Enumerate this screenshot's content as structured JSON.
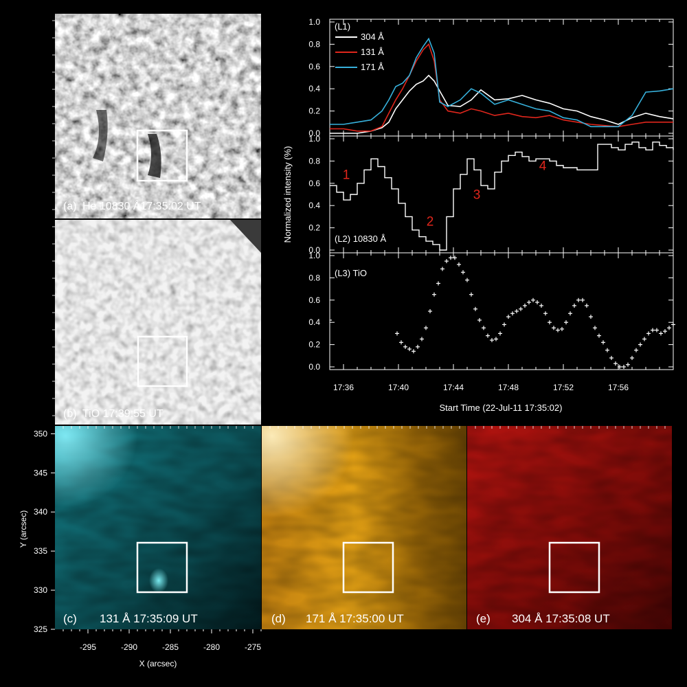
{
  "panels": {
    "a": {
      "letter": "(a)",
      "label": "He 10830 Å17:35:02 UT"
    },
    "b": {
      "letter": "(b)",
      "label": "TiO 17:39:55 UT"
    },
    "c": {
      "letter": "(c)",
      "label": "131 Å 17:35:09 UT",
      "tint": "#17a9b4"
    },
    "d": {
      "letter": "(d)",
      "label": "171 Å 17:35:00 UT",
      "tint": "#d7920a"
    },
    "e": {
      "letter": "(e)",
      "label": "304 Å 17:35:08 UT",
      "tint": "#a00d0a"
    }
  },
  "bottom_axes": {
    "xlabel": "X (arcsec)",
    "ylabel": "Y (arcsec)",
    "xticks": [
      -295,
      -290,
      -285,
      -280,
      -275
    ],
    "yticks": [
      350,
      345,
      340,
      335,
      330,
      325
    ],
    "xlim": [
      -299,
      -274
    ],
    "ylim": [
      325,
      351
    ]
  },
  "chart_data": [
    {
      "type": "line",
      "panel_label": "(L1)",
      "ylim": [
        0,
        1.0
      ],
      "yticks": [
        "0.0",
        "0.2",
        "0.4",
        "0.6",
        "0.8",
        "1.0"
      ],
      "xlim_minutes_after_start": [
        0,
        25
      ],
      "series": [
        {
          "name": "304 Å",
          "color": "#ffffff",
          "x": [
            0,
            1,
            2,
            3,
            3.8,
            4.3,
            4.8,
            5.3,
            5.8,
            6.3,
            6.8,
            7.2,
            7.6,
            8.0,
            8.6,
            9.5,
            10.3,
            11,
            12,
            13,
            14,
            15,
            16,
            17,
            18,
            19,
            20,
            21,
            22,
            23,
            24,
            25
          ],
          "y": [
            0.0,
            0.0,
            0.0,
            0.02,
            0.05,
            0.1,
            0.22,
            0.3,
            0.38,
            0.44,
            0.47,
            0.52,
            0.47,
            0.38,
            0.25,
            0.24,
            0.3,
            0.39,
            0.3,
            0.31,
            0.34,
            0.3,
            0.27,
            0.22,
            0.2,
            0.15,
            0.12,
            0.08,
            0.14,
            0.18,
            0.15,
            0.13
          ]
        },
        {
          "name": "131 Å",
          "color": "#e0261c",
          "x": [
            0,
            1,
            2,
            3,
            3.8,
            4.3,
            4.8,
            5.3,
            5.8,
            6.3,
            6.8,
            7.2,
            7.6,
            8.0,
            8.6,
            9.5,
            10.3,
            11,
            12,
            13,
            14,
            15,
            16,
            17,
            18,
            19,
            20,
            21,
            22,
            23,
            24,
            25
          ],
          "y": [
            0.04,
            0.04,
            0.02,
            0.02,
            0.06,
            0.18,
            0.3,
            0.4,
            0.52,
            0.65,
            0.75,
            0.8,
            0.65,
            0.3,
            0.2,
            0.18,
            0.22,
            0.2,
            0.16,
            0.18,
            0.15,
            0.14,
            0.16,
            0.12,
            0.1,
            0.08,
            0.07,
            0.06,
            0.08,
            0.1,
            0.1,
            0.1
          ]
        },
        {
          "name": "171 Å",
          "color": "#37b1dc",
          "x": [
            0,
            1,
            2,
            3,
            3.8,
            4.3,
            4.8,
            5.3,
            5.8,
            6.3,
            6.8,
            7.2,
            7.6,
            8.0,
            8.6,
            9.5,
            10.3,
            11,
            12,
            13,
            14,
            15,
            16,
            17,
            18,
            19,
            20,
            21,
            22,
            23,
            24,
            25
          ],
          "y": [
            0.08,
            0.08,
            0.1,
            0.12,
            0.2,
            0.3,
            0.42,
            0.45,
            0.52,
            0.68,
            0.78,
            0.85,
            0.72,
            0.28,
            0.24,
            0.3,
            0.4,
            0.36,
            0.26,
            0.3,
            0.26,
            0.22,
            0.2,
            0.14,
            0.12,
            0.06,
            0.06,
            0.06,
            0.16,
            0.37,
            0.38,
            0.4
          ]
        }
      ]
    },
    {
      "type": "line",
      "panel_label": "(L2) 10830 Å",
      "ylim": [
        0,
        1.0
      ],
      "yticks": [
        "0.0",
        "0.2",
        "0.4",
        "0.6",
        "0.8",
        "1.0"
      ],
      "x": [
        0,
        0.5,
        1,
        1.5,
        2,
        2.5,
        3,
        3.5,
        4,
        4.5,
        5,
        5.5,
        6,
        6.5,
        7,
        7.5,
        8,
        8.5,
        9,
        9.5,
        10,
        10.5,
        11,
        11.5,
        12,
        12.5,
        13,
        13.5,
        14,
        14.5,
        15,
        15.5,
        16,
        16.5,
        17,
        17.5,
        18,
        18.5,
        19,
        19.5,
        20,
        20.5,
        21,
        21.5,
        22,
        22.5,
        23,
        23.5,
        24,
        24.5,
        25
      ],
      "y": [
        0.58,
        0.52,
        0.45,
        0.5,
        0.6,
        0.72,
        0.82,
        0.75,
        0.65,
        0.55,
        0.42,
        0.3,
        0.18,
        0.12,
        0.08,
        0.05,
        0.0,
        0.3,
        0.55,
        0.68,
        0.82,
        0.72,
        0.58,
        0.55,
        0.7,
        0.8,
        0.85,
        0.88,
        0.84,
        0.8,
        0.82,
        0.82,
        0.8,
        0.76,
        0.74,
        0.74,
        0.72,
        0.72,
        0.72,
        0.95,
        0.95,
        0.92,
        0.9,
        0.95,
        0.97,
        0.92,
        0.9,
        0.97,
        0.94,
        0.92,
        0.9
      ],
      "annotations": [
        {
          "text": "1",
          "x": 1.2,
          "y": 0.64
        },
        {
          "text": "2",
          "x": 7.3,
          "y": 0.22
        },
        {
          "text": "3",
          "x": 10.7,
          "y": 0.46
        },
        {
          "text": "4",
          "x": 15.5,
          "y": 0.72
        }
      ]
    },
    {
      "type": "scatter",
      "panel_label": "(L3) TiO",
      "marker": "+",
      "ylim": [
        0,
        1.0
      ],
      "yticks": [
        "0.0",
        "0.2",
        "0.4",
        "0.6",
        "0.8",
        "1.0"
      ],
      "x": [
        4.9,
        5.2,
        5.5,
        5.8,
        6.1,
        6.4,
        6.7,
        7.0,
        7.3,
        7.6,
        7.9,
        8.2,
        8.5,
        8.8,
        9.1,
        9.4,
        9.7,
        10.0,
        10.3,
        10.6,
        10.9,
        11.2,
        11.5,
        11.8,
        12.1,
        12.4,
        12.7,
        13.0,
        13.3,
        13.6,
        13.9,
        14.2,
        14.5,
        14.8,
        15.1,
        15.4,
        15.7,
        16.0,
        16.3,
        16.6,
        16.9,
        17.2,
        17.5,
        17.8,
        18.1,
        18.4,
        18.7,
        19.0,
        19.3,
        19.6,
        19.9,
        20.2,
        20.5,
        20.8,
        21.1,
        21.4,
        21.7,
        22.0,
        22.3,
        22.6,
        22.9,
        23.2,
        23.5,
        23.8,
        24.1,
        24.4,
        24.7,
        25.0
      ],
      "y": [
        0.3,
        0.22,
        0.18,
        0.16,
        0.14,
        0.18,
        0.25,
        0.35,
        0.5,
        0.65,
        0.75,
        0.88,
        0.95,
        0.98,
        0.98,
        0.92,
        0.85,
        0.78,
        0.65,
        0.52,
        0.42,
        0.35,
        0.28,
        0.24,
        0.25,
        0.3,
        0.38,
        0.45,
        0.48,
        0.5,
        0.52,
        0.55,
        0.58,
        0.6,
        0.58,
        0.55,
        0.48,
        0.4,
        0.35,
        0.33,
        0.34,
        0.4,
        0.48,
        0.55,
        0.6,
        0.6,
        0.55,
        0.45,
        0.35,
        0.28,
        0.22,
        0.15,
        0.08,
        0.03,
        0.0,
        0.0,
        0.02,
        0.08,
        0.15,
        0.2,
        0.25,
        0.3,
        0.33,
        0.33,
        0.3,
        0.32,
        0.35,
        0.38
      ]
    }
  ],
  "time_axis": {
    "tick_labels": [
      "17:36",
      "17:40",
      "17:44",
      "17:48",
      "17:52",
      "17:56"
    ],
    "xlabel": "Start Time (22-Jul-11 17:35:02)",
    "shared_ylabel": "Normalized intensity (%)"
  }
}
